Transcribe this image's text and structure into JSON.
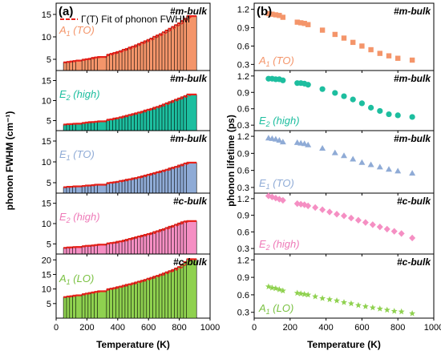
{
  "chart_data": [
    {
      "panel": "(a)",
      "type": "bar",
      "ylabel": "phonon FWHM (cm⁻¹)",
      "xlabel": "Temperature (K)",
      "xlim": [
        0,
        1000
      ],
      "xticks": [
        0,
        200,
        400,
        600,
        800,
        1000
      ],
      "legend": "Γ(T) Fit of phonon FWHM",
      "legend_color": "#e8221b",
      "x": [
        80,
        100,
        120,
        140,
        160,
        200,
        220,
        240,
        260,
        280,
        300,
        360,
        380,
        400,
        420,
        440,
        460,
        480,
        500,
        520,
        540,
        560,
        580,
        600,
        620,
        640,
        660,
        680,
        700,
        720,
        740,
        760,
        780,
        800,
        820,
        840,
        860,
        880
      ],
      "subplots": [
        {
          "mode": "A1 (TO)",
          "sample": "#m-bulk",
          "color": "#f4956a",
          "label_color": "#f4956a",
          "ylim": [
            2.5,
            17.5
          ],
          "yticks": [
            5,
            10,
            15
          ],
          "values": [
            4.3,
            4.4,
            4.5,
            4.6,
            4.7,
            4.9,
            5.0,
            5.1,
            5.3,
            5.4,
            5.5,
            6.0,
            6.2,
            6.4,
            6.6,
            6.8,
            7.1,
            7.3,
            7.6,
            7.8,
            8.1,
            8.4,
            8.7,
            9.0,
            9.3,
            9.6,
            10.0,
            10.3,
            10.6,
            11.0,
            11.4,
            11.8,
            12.2,
            12.6,
            13.0,
            13.5,
            14.0,
            14.6
          ]
        },
        {
          "mode": "E2 (high)",
          "sample": "#m-bulk",
          "color": "#1dbe9f",
          "label_color": "#1dbe9f",
          "ylim": [
            2.5,
            17.5
          ],
          "yticks": [
            5,
            10,
            15
          ],
          "values": [
            4.0,
            4.1,
            4.1,
            4.2,
            4.2,
            4.4,
            4.5,
            4.6,
            4.6,
            4.7,
            4.8,
            5.2,
            5.3,
            5.5,
            5.6,
            5.8,
            6.0,
            6.2,
            6.4,
            6.6,
            6.8,
            7.0,
            7.2,
            7.5,
            7.7,
            7.9,
            8.2,
            8.4,
            8.7,
            9.0,
            9.3,
            9.6,
            9.9,
            10.2,
            10.5,
            10.8,
            11.1,
            11.5
          ]
        },
        {
          "mode": "E1 (TO)",
          "sample": "#m-bulk",
          "color": "#8fabd6",
          "label_color": "#8fabd6",
          "ylim": [
            2.5,
            17.5
          ],
          "yticks": [
            5,
            10,
            15
          ],
          "values": [
            3.9,
            4.0,
            4.0,
            4.1,
            4.1,
            4.2,
            4.3,
            4.3,
            4.4,
            4.5,
            4.5,
            4.9,
            5.0,
            5.1,
            5.2,
            5.4,
            5.5,
            5.7,
            5.8,
            6.0,
            6.1,
            6.3,
            6.5,
            6.7,
            6.9,
            7.1,
            7.3,
            7.5,
            7.7,
            7.9,
            8.1,
            8.4,
            8.6,
            8.8,
            9.1,
            9.3,
            9.6,
            9.8
          ]
        },
        {
          "mode": "E2 (high)",
          "sample": "#c-bulk",
          "color": "#f58fc3",
          "label_color": "#ee7ab8",
          "ylim": [
            2.5,
            17.5
          ],
          "yticks": [
            5,
            10,
            15
          ],
          "values": [
            4.0,
            4.1,
            4.1,
            4.2,
            4.2,
            4.4,
            4.5,
            4.5,
            4.6,
            4.7,
            4.8,
            5.1,
            5.2,
            5.3,
            5.5,
            5.6,
            5.8,
            6.0,
            6.2,
            6.4,
            6.6,
            6.8,
            7.0,
            7.2,
            7.4,
            7.6,
            7.9,
            8.1,
            8.4,
            8.6,
            8.9,
            9.2,
            9.4,
            9.7,
            10.0,
            10.3,
            10.5,
            10.6
          ]
        },
        {
          "mode": "A1 (LO)",
          "sample": "#c-bulk",
          "color": "#8fd14f",
          "label_color": "#7ac142",
          "ylim": [
            0,
            22
          ],
          "yticks": [
            5,
            10,
            15,
            20
          ],
          "values": [
            7.2,
            7.4,
            7.5,
            7.7,
            7.8,
            8.2,
            8.4,
            8.6,
            8.8,
            9.0,
            9.2,
            9.9,
            10.1,
            10.3,
            10.6,
            10.8,
            11.1,
            11.4,
            11.6,
            11.9,
            12.2,
            12.5,
            12.8,
            13.1,
            13.5,
            13.8,
            14.2,
            14.5,
            14.9,
            15.3,
            15.7,
            16.1,
            16.5,
            17.0,
            17.5,
            18.3,
            19.2,
            20.2
          ]
        }
      ]
    },
    {
      "panel": "(b)",
      "type": "scatter",
      "ylabel": "phonon lifetime (ps)",
      "xlabel": "Temperature (K)",
      "xlim": [
        0,
        1000
      ],
      "xticks": [
        0,
        200,
        400,
        600,
        800,
        1000
      ],
      "ylim": [
        0.2,
        1.3
      ],
      "yticks": [
        0.3,
        0.6,
        0.9,
        1.2
      ],
      "subplots": [
        {
          "mode": "A1 (TO)",
          "sample": "#m-bulk",
          "color": "#f4956a",
          "marker": "square",
          "x": [
            80,
            100,
            120,
            140,
            160,
            240,
            260,
            280,
            300,
            380,
            450,
            500,
            550,
            600,
            650,
            700,
            750,
            800,
            880
          ],
          "values": [
            1.13,
            1.12,
            1.11,
            1.1,
            1.07,
            0.99,
            0.98,
            0.97,
            0.95,
            0.86,
            0.79,
            0.73,
            0.66,
            0.6,
            0.54,
            0.48,
            0.44,
            0.4,
            0.37
          ]
        },
        {
          "mode": "E2 (high)",
          "sample": "#m-bulk",
          "color": "#1dbe9f",
          "marker": "circle",
          "x": [
            80,
            100,
            120,
            140,
            160,
            240,
            260,
            280,
            300,
            380,
            450,
            500,
            550,
            600,
            650,
            700,
            750,
            800,
            880
          ],
          "values": [
            1.15,
            1.15,
            1.14,
            1.14,
            1.12,
            1.07,
            1.07,
            1.06,
            1.04,
            0.96,
            0.89,
            0.83,
            0.77,
            0.7,
            0.62,
            0.56,
            0.5,
            0.48,
            0.45
          ]
        },
        {
          "mode": "E1 (TO)",
          "sample": "#m-bulk",
          "color": "#8fabd6",
          "marker": "triangle",
          "x": [
            80,
            100,
            120,
            140,
            160,
            240,
            260,
            280,
            300,
            380,
            450,
            500,
            550,
            600,
            650,
            700,
            750,
            800,
            880
          ],
          "values": [
            1.17,
            1.16,
            1.15,
            1.13,
            1.1,
            1.09,
            1.08,
            1.07,
            1.05,
            0.99,
            0.91,
            0.86,
            0.8,
            0.74,
            0.7,
            0.66,
            0.62,
            0.59,
            0.55
          ]
        },
        {
          "mode": "E2 (high)",
          "sample": "#c-bulk",
          "color": "#f58fc3",
          "label_color": "#ee7ab8",
          "marker": "diamond",
          "x": [
            80,
            100,
            120,
            140,
            160,
            240,
            260,
            280,
            300,
            340,
            380,
            420,
            460,
            500,
            540,
            580,
            620,
            660,
            700,
            740,
            780,
            820,
            880
          ],
          "values": [
            1.25,
            1.23,
            1.21,
            1.19,
            1.17,
            1.11,
            1.1,
            1.09,
            1.07,
            1.04,
            1.0,
            0.96,
            0.92,
            0.89,
            0.85,
            0.81,
            0.77,
            0.73,
            0.69,
            0.65,
            0.61,
            0.57,
            0.49
          ]
        },
        {
          "mode": "A1 (LO)",
          "sample": "#c-bulk",
          "color": "#8fd14f",
          "label_color": "#7ac142",
          "marker": "star",
          "x": [
            80,
            100,
            120,
            140,
            160,
            240,
            260,
            280,
            300,
            340,
            380,
            420,
            460,
            500,
            540,
            580,
            620,
            660,
            700,
            740,
            780,
            820,
            880
          ],
          "values": [
            0.74,
            0.72,
            0.71,
            0.69,
            0.67,
            0.63,
            0.62,
            0.61,
            0.6,
            0.57,
            0.54,
            0.52,
            0.5,
            0.47,
            0.45,
            0.42,
            0.4,
            0.38,
            0.36,
            0.34,
            0.32,
            0.31,
            0.28
          ]
        }
      ]
    }
  ]
}
